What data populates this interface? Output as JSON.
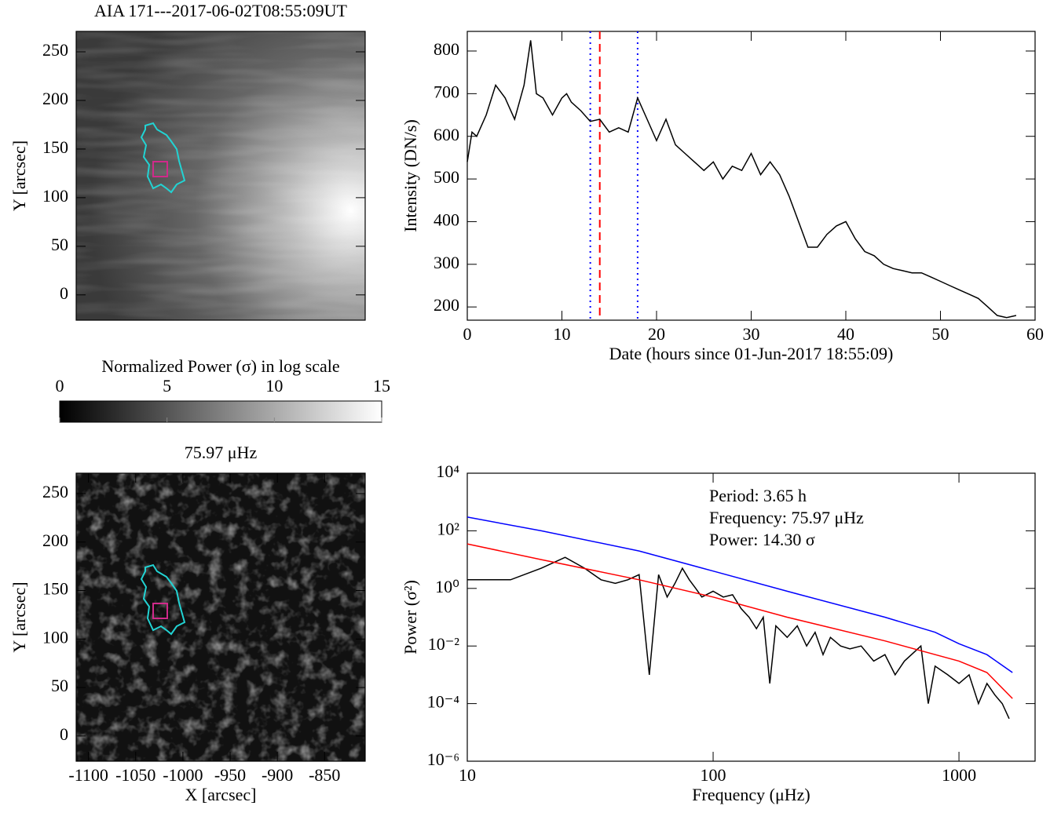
{
  "chart_data": [
    {
      "type": "image",
      "title": "AIA 171---2017-06-02T08:55:09UT",
      "ylabel": "Y [arcsec]",
      "xlim": [
        -1113,
        -807
      ],
      "ylim": [
        -26,
        271
      ],
      "yticks": [
        0,
        50,
        100,
        150,
        200,
        250
      ],
      "style": "euv"
    },
    {
      "type": "line",
      "xlabel": "Date (hours since 01-Jun-2017 18:55:09)",
      "ylabel": "Intensity (DN/s)",
      "xlim": [
        0,
        60
      ],
      "ylim": [
        169,
        846
      ],
      "xticks": [
        0,
        10,
        20,
        30,
        40,
        50,
        60
      ],
      "yticks": [
        200,
        300,
        400,
        500,
        600,
        700,
        800
      ],
      "x": [
        0,
        0.5,
        1,
        2,
        3,
        4,
        5,
        6,
        6.7,
        7.3,
        8,
        9,
        10,
        10.5,
        11,
        12,
        13,
        14,
        15,
        16,
        17,
        18,
        19,
        20,
        21,
        22,
        23,
        24,
        25,
        26,
        27,
        28,
        29,
        30,
        31,
        32,
        33,
        34,
        35,
        36,
        37,
        38,
        39,
        40,
        41,
        42,
        43,
        44,
        45,
        46,
        47,
        48,
        49,
        50,
        51,
        52,
        53,
        54,
        55,
        56,
        57,
        58
      ],
      "series": [
        {
          "color": "#000000",
          "values": [
            540,
            610,
            600,
            650,
            720,
            690,
            640,
            720,
            825,
            700,
            690,
            650,
            690,
            700,
            680,
            660,
            635,
            640,
            610,
            620,
            610,
            690,
            640,
            590,
            640,
            580,
            560,
            540,
            520,
            540,
            500,
            530,
            520,
            560,
            510,
            540,
            510,
            460,
            400,
            340,
            340,
            370,
            390,
            400,
            360,
            330,
            320,
            300,
            290,
            285,
            280,
            280,
            270,
            260,
            250,
            240,
            230,
            220,
            200,
            180,
            175,
            180
          ]
        }
      ],
      "vlines": [
        {
          "x": 13,
          "color": "#0000ff",
          "dash": "dotted"
        },
        {
          "x": 14,
          "color": "#ff0000",
          "dash": "dashed"
        },
        {
          "x": 18,
          "color": "#0000ff",
          "dash": "dotted"
        }
      ]
    },
    {
      "type": "colorbar",
      "title": "Normalized Power (σ) in log scale",
      "xlim": [
        0,
        15
      ],
      "xticks": [
        0,
        5,
        10,
        15
      ]
    },
    {
      "type": "image",
      "title": "75.97 μHz",
      "xlabel": "X [arcsec]",
      "ylabel": "Y [arcsec]",
      "xlim": [
        -1113,
        -807
      ],
      "ylim": [
        -26,
        271
      ],
      "xticks": [
        -1100,
        -1050,
        -1000,
        -950,
        -900,
        -850
      ],
      "yticks": [
        0,
        50,
        100,
        150,
        200,
        250
      ],
      "style": "power"
    },
    {
      "type": "line",
      "xlabel": "Frequency (μHz)",
      "ylabel": "Power (σ²)",
      "xlog": true,
      "ylog": true,
      "xlim": [
        10,
        2040
      ],
      "ylim": [
        1e-06,
        10000
      ],
      "xticks": [
        10,
        100,
        1000
      ],
      "yticks": [
        {
          "value": 1e-06,
          "label": "10⁻⁶"
        },
        {
          "value": 0.0001,
          "label": "10⁻⁴"
        },
        {
          "value": 0.01,
          "label": "10⁻²"
        },
        {
          "value": 1,
          "label": "10⁰"
        },
        {
          "value": 100,
          "label": "10²"
        },
        {
          "value": 10000,
          "label": "10⁴"
        }
      ],
      "annotations": [
        "Period: 3.65 h",
        "Frequency: 75.97 μHz",
        "Power: 14.30 σ"
      ],
      "series": [
        {
          "color": "#000000",
          "x": [
            10,
            15,
            20,
            25,
            30,
            35,
            40,
            45,
            50,
            55,
            60,
            65,
            70,
            75,
            80,
            85,
            90,
            100,
            110,
            120,
            130,
            140,
            150,
            160,
            170,
            180,
            200,
            220,
            240,
            260,
            280,
            300,
            330,
            360,
            400,
            450,
            500,
            550,
            600,
            700,
            750,
            800,
            900,
            1000,
            1100,
            1200,
            1300,
            1400,
            1500,
            1600
          ],
          "values": [
            2,
            2,
            5,
            12,
            5,
            2,
            1.5,
            2,
            3,
            0.001,
            3,
            0.5,
            1.5,
            5,
            2,
            1,
            0.5,
            0.8,
            0.5,
            0.6,
            0.2,
            0.1,
            0.04,
            0.1,
            0.0005,
            0.05,
            0.02,
            0.05,
            0.01,
            0.03,
            0.005,
            0.02,
            0.01,
            0.008,
            0.01,
            0.003,
            0.005,
            0.001,
            0.003,
            0.01,
            0.0001,
            0.002,
            0.001,
            0.0005,
            0.001,
            0.0001,
            0.0005,
            0.0002,
            0.0001,
            3e-05
          ]
        },
        {
          "color": "#ff0000",
          "x": [
            10,
            20,
            50,
            100,
            200,
            500,
            1000,
            1300,
            1650
          ],
          "values": [
            35,
            10,
            2,
            0.5,
            0.1,
            0.015,
            0.003,
            0.0012,
            0.00015
          ]
        },
        {
          "color": "#0000ff",
          "x": [
            10,
            20,
            50,
            100,
            200,
            500,
            800,
            1000,
            1300,
            1650
          ],
          "values": [
            300,
            100,
            20,
            4,
            0.8,
            0.1,
            0.03,
            0.012,
            0.005,
            0.0012
          ]
        }
      ]
    }
  ]
}
